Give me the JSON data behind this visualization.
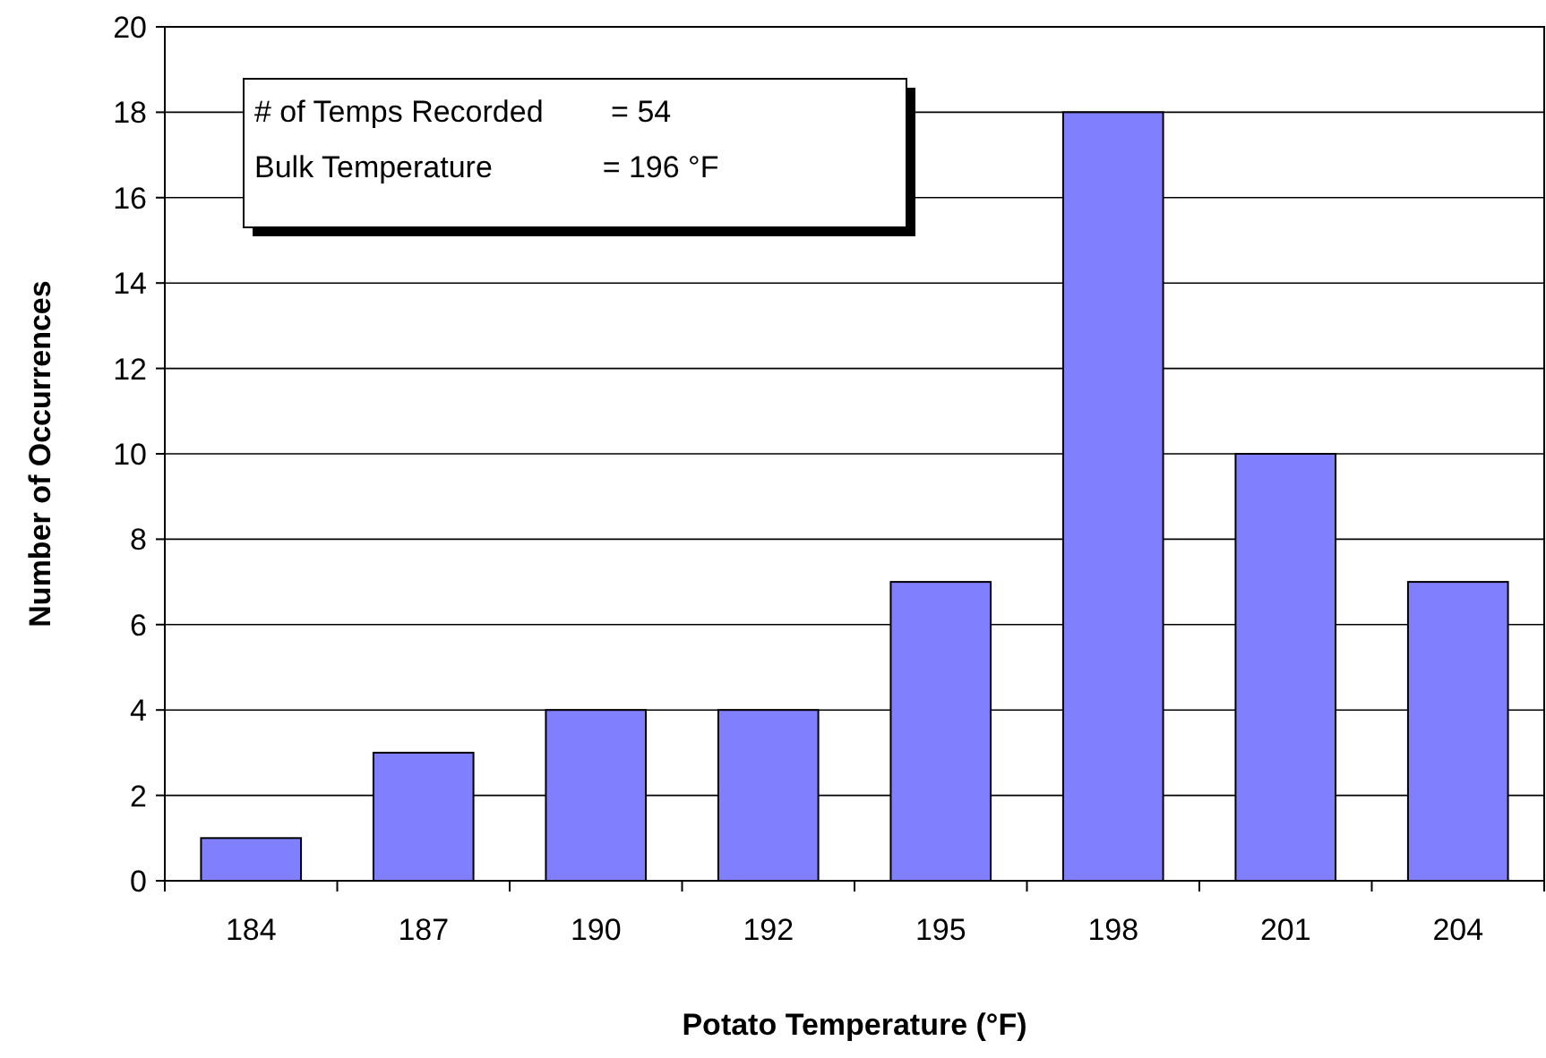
{
  "chart_data": {
    "type": "bar",
    "xlabel": "Potato Temperature (°F)",
    "ylabel": "Number of Occurrences",
    "categories": [
      "184",
      "187",
      "190",
      "192",
      "195",
      "198",
      "201",
      "204"
    ],
    "values": [
      1,
      3,
      4,
      4,
      7,
      18,
      10,
      7
    ],
    "color": "#8080ff",
    "ylim": [
      0,
      20
    ],
    "yticks": [
      0,
      2,
      4,
      6,
      8,
      10,
      12,
      14,
      16,
      18,
      20
    ],
    "grid": "y",
    "annotations": [
      "# of Temps Recorded        = 54",
      "Bulk Temperature             = 196 °F"
    ]
  }
}
